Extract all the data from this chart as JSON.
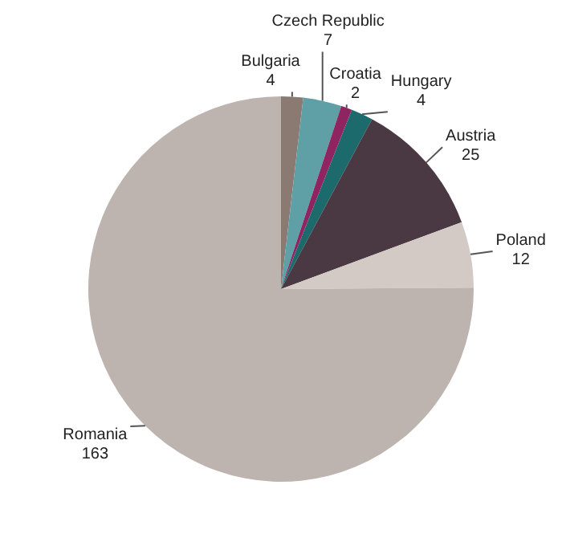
{
  "chart_data": {
    "type": "pie",
    "categories": [
      "Bulgaria",
      "Czech Republic",
      "Croatia",
      "Hungary",
      "Austria",
      "Poland",
      "Romania"
    ],
    "values": [
      4,
      7,
      2,
      4,
      25,
      12,
      163
    ],
    "colors": [
      "#8a7a72",
      "#5f9fa6",
      "#8e2460",
      "#1c6a6c",
      "#4a3843",
      "#d3cac6",
      "#bdb3af"
    ],
    "data_labels": true,
    "legend": false
  }
}
